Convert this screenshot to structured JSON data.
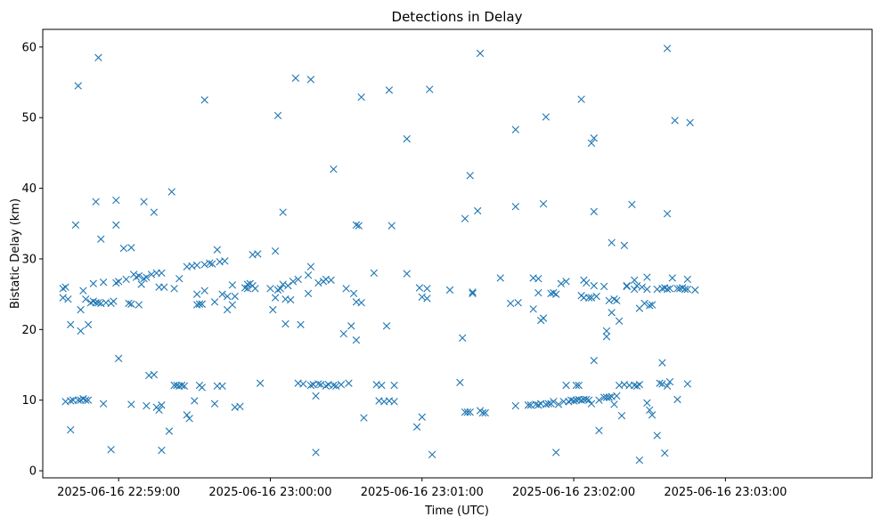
{
  "chart_data": {
    "type": "scatter",
    "title": "Detections in Delay",
    "xlabel": "Time (UTC)",
    "ylabel": "Bistatic Delay (km)",
    "marker": "x",
    "color": "#1f77b4",
    "x_unit": "seconds after 2025-06-16 22:58:30",
    "xlim": [
      0,
      328
    ],
    "ylim": [
      -1,
      62.5
    ],
    "x_ticks": [
      {
        "value": 30,
        "label": "2025-06-16 22:59:00"
      },
      {
        "value": 90,
        "label": "2025-06-16 23:00:00"
      },
      {
        "value": 150,
        "label": "2025-06-16 23:01:00"
      },
      {
        "value": 210,
        "label": "2025-06-16 23:02:00"
      },
      {
        "value": 270,
        "label": "2025-06-16 23:03:00"
      }
    ],
    "y_ticks": [
      {
        "value": 0,
        "label": "0"
      },
      {
        "value": 10,
        "label": "10"
      },
      {
        "value": 20,
        "label": "20"
      },
      {
        "value": 30,
        "label": "30"
      },
      {
        "value": 40,
        "label": "40"
      },
      {
        "value": 50,
        "label": "50"
      },
      {
        "value": 60,
        "label": "60"
      }
    ],
    "points": [
      [
        8,
        25.8
      ],
      [
        8,
        24.5
      ],
      [
        9,
        26
      ],
      [
        9,
        9.8
      ],
      [
        10,
        24.3
      ],
      [
        11,
        20.7
      ],
      [
        11,
        9.9
      ],
      [
        11,
        5.8
      ],
      [
        12,
        10
      ],
      [
        13,
        34.8
      ],
      [
        14,
        10
      ],
      [
        14,
        54.5
      ],
      [
        15,
        22.8
      ],
      [
        15,
        19.8
      ],
      [
        15,
        10
      ],
      [
        16,
        10.2
      ],
      [
        16,
        25.5
      ],
      [
        17,
        10
      ],
      [
        17,
        24.3
      ],
      [
        18,
        20.7
      ],
      [
        18,
        10
      ],
      [
        19,
        23.8
      ],
      [
        20,
        26.5
      ],
      [
        20,
        24
      ],
      [
        21,
        23.8
      ],
      [
        21,
        38.1
      ],
      [
        22,
        58.5
      ],
      [
        22,
        23.8
      ],
      [
        23,
        23.7
      ],
      [
        23,
        32.8
      ],
      [
        24,
        26.7
      ],
      [
        24,
        9.5
      ],
      [
        25,
        23.8
      ],
      [
        27,
        23.7
      ],
      [
        27,
        3
      ],
      [
        28,
        24
      ],
      [
        29,
        34.8
      ],
      [
        29,
        38.3
      ],
      [
        29,
        26.6
      ],
      [
        30,
        15.9
      ],
      [
        30,
        26.8
      ],
      [
        32,
        31.5
      ],
      [
        33,
        27.1
      ],
      [
        34,
        23.7
      ],
      [
        35,
        31.6
      ],
      [
        35,
        23.6
      ],
      [
        35,
        9.4
      ],
      [
        36,
        27.8
      ],
      [
        37,
        27.4
      ],
      [
        38,
        27.6
      ],
      [
        38,
        23.5
      ],
      [
        39,
        26.4
      ],
      [
        40,
        27.2
      ],
      [
        40,
        38.1
      ],
      [
        41,
        27.4
      ],
      [
        41,
        9.2
      ],
      [
        42,
        13.5
      ],
      [
        43,
        27.8
      ],
      [
        44,
        36.6
      ],
      [
        44,
        13.6
      ],
      [
        45,
        28
      ],
      [
        45,
        9
      ],
      [
        46,
        26
      ],
      [
        46,
        8.6
      ],
      [
        47,
        9.3
      ],
      [
        47,
        2.9
      ],
      [
        47,
        28
      ],
      [
        48,
        26
      ],
      [
        50,
        5.6
      ],
      [
        51,
        39.5
      ],
      [
        52,
        25.8
      ],
      [
        52,
        12.1
      ],
      [
        53,
        12.1
      ],
      [
        54,
        27.2
      ],
      [
        54,
        12
      ],
      [
        55,
        12.1
      ],
      [
        56,
        12
      ],
      [
        57,
        7.9
      ],
      [
        57,
        28.9
      ],
      [
        58,
        7.4
      ],
      [
        59,
        29
      ],
      [
        60,
        9.9
      ],
      [
        61,
        25
      ],
      [
        61,
        23.5
      ],
      [
        61,
        29.1
      ],
      [
        62,
        23.6
      ],
      [
        62,
        12.1
      ],
      [
        63,
        11.8
      ],
      [
        63,
        23.6
      ],
      [
        64,
        52.5
      ],
      [
        64,
        29.2
      ],
      [
        64,
        25.5
      ],
      [
        66,
        29.4
      ],
      [
        67,
        29.3
      ],
      [
        68,
        23.9
      ],
      [
        68,
        9.5
      ],
      [
        69,
        31.3
      ],
      [
        69,
        12
      ],
      [
        70,
        29.6
      ],
      [
        71,
        25
      ],
      [
        71,
        12
      ],
      [
        72,
        29.7
      ],
      [
        73,
        22.8
      ],
      [
        73,
        24.7
      ],
      [
        75,
        23.5
      ],
      [
        75,
        26.3
      ],
      [
        76,
        24.7
      ],
      [
        76,
        9
      ],
      [
        78,
        9.1
      ],
      [
        80,
        25.9
      ],
      [
        81,
        26.4
      ],
      [
        81,
        25.8
      ],
      [
        82,
        26.5
      ],
      [
        83,
        30.6
      ],
      [
        83,
        26.2
      ],
      [
        84,
        25.8
      ],
      [
        85,
        30.7
      ],
      [
        86,
        12.4
      ],
      [
        90,
        25.8
      ],
      [
        91,
        22.8
      ],
      [
        92,
        24.5
      ],
      [
        92,
        31.1
      ],
      [
        93,
        50.3
      ],
      [
        93,
        25.6
      ],
      [
        94,
        25.8
      ],
      [
        95,
        26.4
      ],
      [
        95,
        36.6
      ],
      [
        96,
        20.8
      ],
      [
        96,
        24.3
      ],
      [
        97,
        26.2
      ],
      [
        98,
        24.2
      ],
      [
        99,
        26.8
      ],
      [
        100,
        55.6
      ],
      [
        101,
        27.1
      ],
      [
        101,
        12.4
      ],
      [
        102,
        20.7
      ],
      [
        103,
        12.3
      ],
      [
        105,
        27.7
      ],
      [
        105,
        25.1
      ],
      [
        106,
        55.4
      ],
      [
        106,
        28.9
      ],
      [
        106,
        12.1
      ],
      [
        107,
        12.2
      ],
      [
        108,
        2.6
      ],
      [
        108,
        10.6
      ],
      [
        109,
        12.3
      ],
      [
        109,
        26.6
      ],
      [
        110,
        12.2
      ],
      [
        111,
        26.8
      ],
      [
        112,
        27.1
      ],
      [
        112,
        12
      ],
      [
        113,
        12.2
      ],
      [
        114,
        27
      ],
      [
        115,
        42.7
      ],
      [
        115,
        12.1
      ],
      [
        116,
        12
      ],
      [
        118,
        12.2
      ],
      [
        119,
        19.4
      ],
      [
        120,
        25.8
      ],
      [
        121,
        12.4
      ],
      [
        122,
        20.5
      ],
      [
        123,
        25.1
      ],
      [
        124,
        34.8
      ],
      [
        124,
        23.9
      ],
      [
        124,
        18.5
      ],
      [
        125,
        34.7
      ],
      [
        126,
        23.8
      ],
      [
        126,
        52.9
      ],
      [
        127,
        7.5
      ],
      [
        131,
        28
      ],
      [
        132,
        12.2
      ],
      [
        133,
        9.9
      ],
      [
        134,
        12.1
      ],
      [
        135,
        9.8
      ],
      [
        136,
        20.5
      ],
      [
        137,
        53.9
      ],
      [
        137,
        9.9
      ],
      [
        139,
        9.8
      ],
      [
        138,
        34.7
      ],
      [
        139,
        12.1
      ],
      [
        144,
        47
      ],
      [
        144,
        27.9
      ],
      [
        148,
        6.2
      ],
      [
        149,
        25.9
      ],
      [
        150,
        7.6
      ],
      [
        150,
        24.6
      ],
      [
        152,
        25.8
      ],
      [
        152,
        24.4
      ],
      [
        153,
        54
      ],
      [
        154,
        2.3
      ],
      [
        161,
        25.6
      ],
      [
        165,
        12.5
      ],
      [
        166,
        18.8
      ],
      [
        167,
        8.3
      ],
      [
        167,
        35.7
      ],
      [
        168,
        8.3
      ],
      [
        169,
        8.3
      ],
      [
        169,
        41.8
      ],
      [
        170,
        25.3
      ],
      [
        170,
        25.1
      ],
      [
        172,
        36.8
      ],
      [
        173,
        59.1
      ],
      [
        173,
        8.5
      ],
      [
        174,
        8.2
      ],
      [
        175,
        8.2
      ],
      [
        181,
        27.3
      ],
      [
        185,
        23.7
      ],
      [
        187,
        48.3
      ],
      [
        187,
        9.2
      ],
      [
        187,
        37.4
      ],
      [
        188,
        23.8
      ],
      [
        192,
        9.3
      ],
      [
        193,
        9.3
      ],
      [
        194,
        27.3
      ],
      [
        194,
        22.9
      ],
      [
        195,
        9.4
      ],
      [
        196,
        25.2
      ],
      [
        196,
        27.2
      ],
      [
        196,
        9.3
      ],
      [
        197,
        21.3
      ],
      [
        197,
        9.5
      ],
      [
        198,
        21.6
      ],
      [
        198,
        37.8
      ],
      [
        199,
        9.4
      ],
      [
        199,
        50.1
      ],
      [
        200,
        9.5
      ],
      [
        201,
        25.1
      ],
      [
        201,
        9.5
      ],
      [
        202,
        25.2
      ],
      [
        202,
        9.8
      ],
      [
        203,
        2.6
      ],
      [
        203,
        25
      ],
      [
        204,
        9.4
      ],
      [
        205,
        26.5
      ],
      [
        206,
        9.8
      ],
      [
        207,
        12.1
      ],
      [
        207,
        26.8
      ],
      [
        208,
        9.8
      ],
      [
        209,
        10
      ],
      [
        210,
        9.9
      ],
      [
        211,
        12.1
      ],
      [
        211,
        10
      ],
      [
        212,
        10.1
      ],
      [
        212,
        12.1
      ],
      [
        213,
        24.8
      ],
      [
        213,
        52.6
      ],
      [
        213,
        10
      ],
      [
        214,
        27
      ],
      [
        214,
        24.5
      ],
      [
        214,
        10.1
      ],
      [
        215,
        26.6
      ],
      [
        215,
        10.1
      ],
      [
        216,
        24.5
      ],
      [
        216,
        10
      ],
      [
        217,
        24.5
      ],
      [
        217,
        46.4
      ],
      [
        217,
        9.5
      ],
      [
        218,
        47.1
      ],
      [
        218,
        36.7
      ],
      [
        218,
        26.2
      ],
      [
        218,
        15.6
      ],
      [
        219,
        24.7
      ],
      [
        220,
        5.7
      ],
      [
        220,
        10
      ],
      [
        222,
        26.1
      ],
      [
        222,
        10.4
      ],
      [
        223,
        19
      ],
      [
        223,
        19.8
      ],
      [
        223,
        10.4
      ],
      [
        224,
        24.1
      ],
      [
        224,
        10.4
      ],
      [
        225,
        32.3
      ],
      [
        225,
        22.4
      ],
      [
        225,
        10.5
      ],
      [
        226,
        24.3
      ],
      [
        226,
        9.4
      ],
      [
        227,
        10.6
      ],
      [
        227,
        24.1
      ],
      [
        228,
        12.1
      ],
      [
        228,
        21.2
      ],
      [
        229,
        7.8
      ],
      [
        230,
        12.2
      ],
      [
        230,
        31.9
      ],
      [
        231,
        26.2
      ],
      [
        231,
        26.1
      ],
      [
        232,
        12.1
      ],
      [
        233,
        37.7
      ],
      [
        234,
        12.1
      ],
      [
        234,
        25.7
      ],
      [
        234,
        27
      ],
      [
        235,
        26.2
      ],
      [
        235,
        12
      ],
      [
        236,
        12.2
      ],
      [
        236,
        1.5
      ],
      [
        236,
        23
      ],
      [
        237,
        26
      ],
      [
        238,
        23.7
      ],
      [
        239,
        27.4
      ],
      [
        239,
        25.7
      ],
      [
        239,
        9.6
      ],
      [
        240,
        23.4
      ],
      [
        240,
        8.6
      ],
      [
        241,
        23.5
      ],
      [
        241,
        7.9
      ],
      [
        243,
        5
      ],
      [
        243,
        25.7
      ],
      [
        244,
        12.4
      ],
      [
        245,
        15.3
      ],
      [
        245,
        12.3
      ],
      [
        245,
        25.8
      ],
      [
        246,
        25.9
      ],
      [
        246,
        2.5
      ],
      [
        247,
        59.8
      ],
      [
        247,
        12
      ],
      [
        247,
        36.4
      ],
      [
        247,
        25.7
      ],
      [
        248,
        25.8
      ],
      [
        248,
        12.6
      ],
      [
        249,
        27.3
      ],
      [
        250,
        49.6
      ],
      [
        251,
        25.8
      ],
      [
        251,
        10.1
      ],
      [
        252,
        25.8
      ],
      [
        253,
        25.9
      ],
      [
        254,
        25.7
      ],
      [
        255,
        27.1
      ],
      [
        255,
        25.7
      ],
      [
        255,
        12.3
      ],
      [
        256,
        49.3
      ],
      [
        258,
        25.6
      ]
    ]
  }
}
